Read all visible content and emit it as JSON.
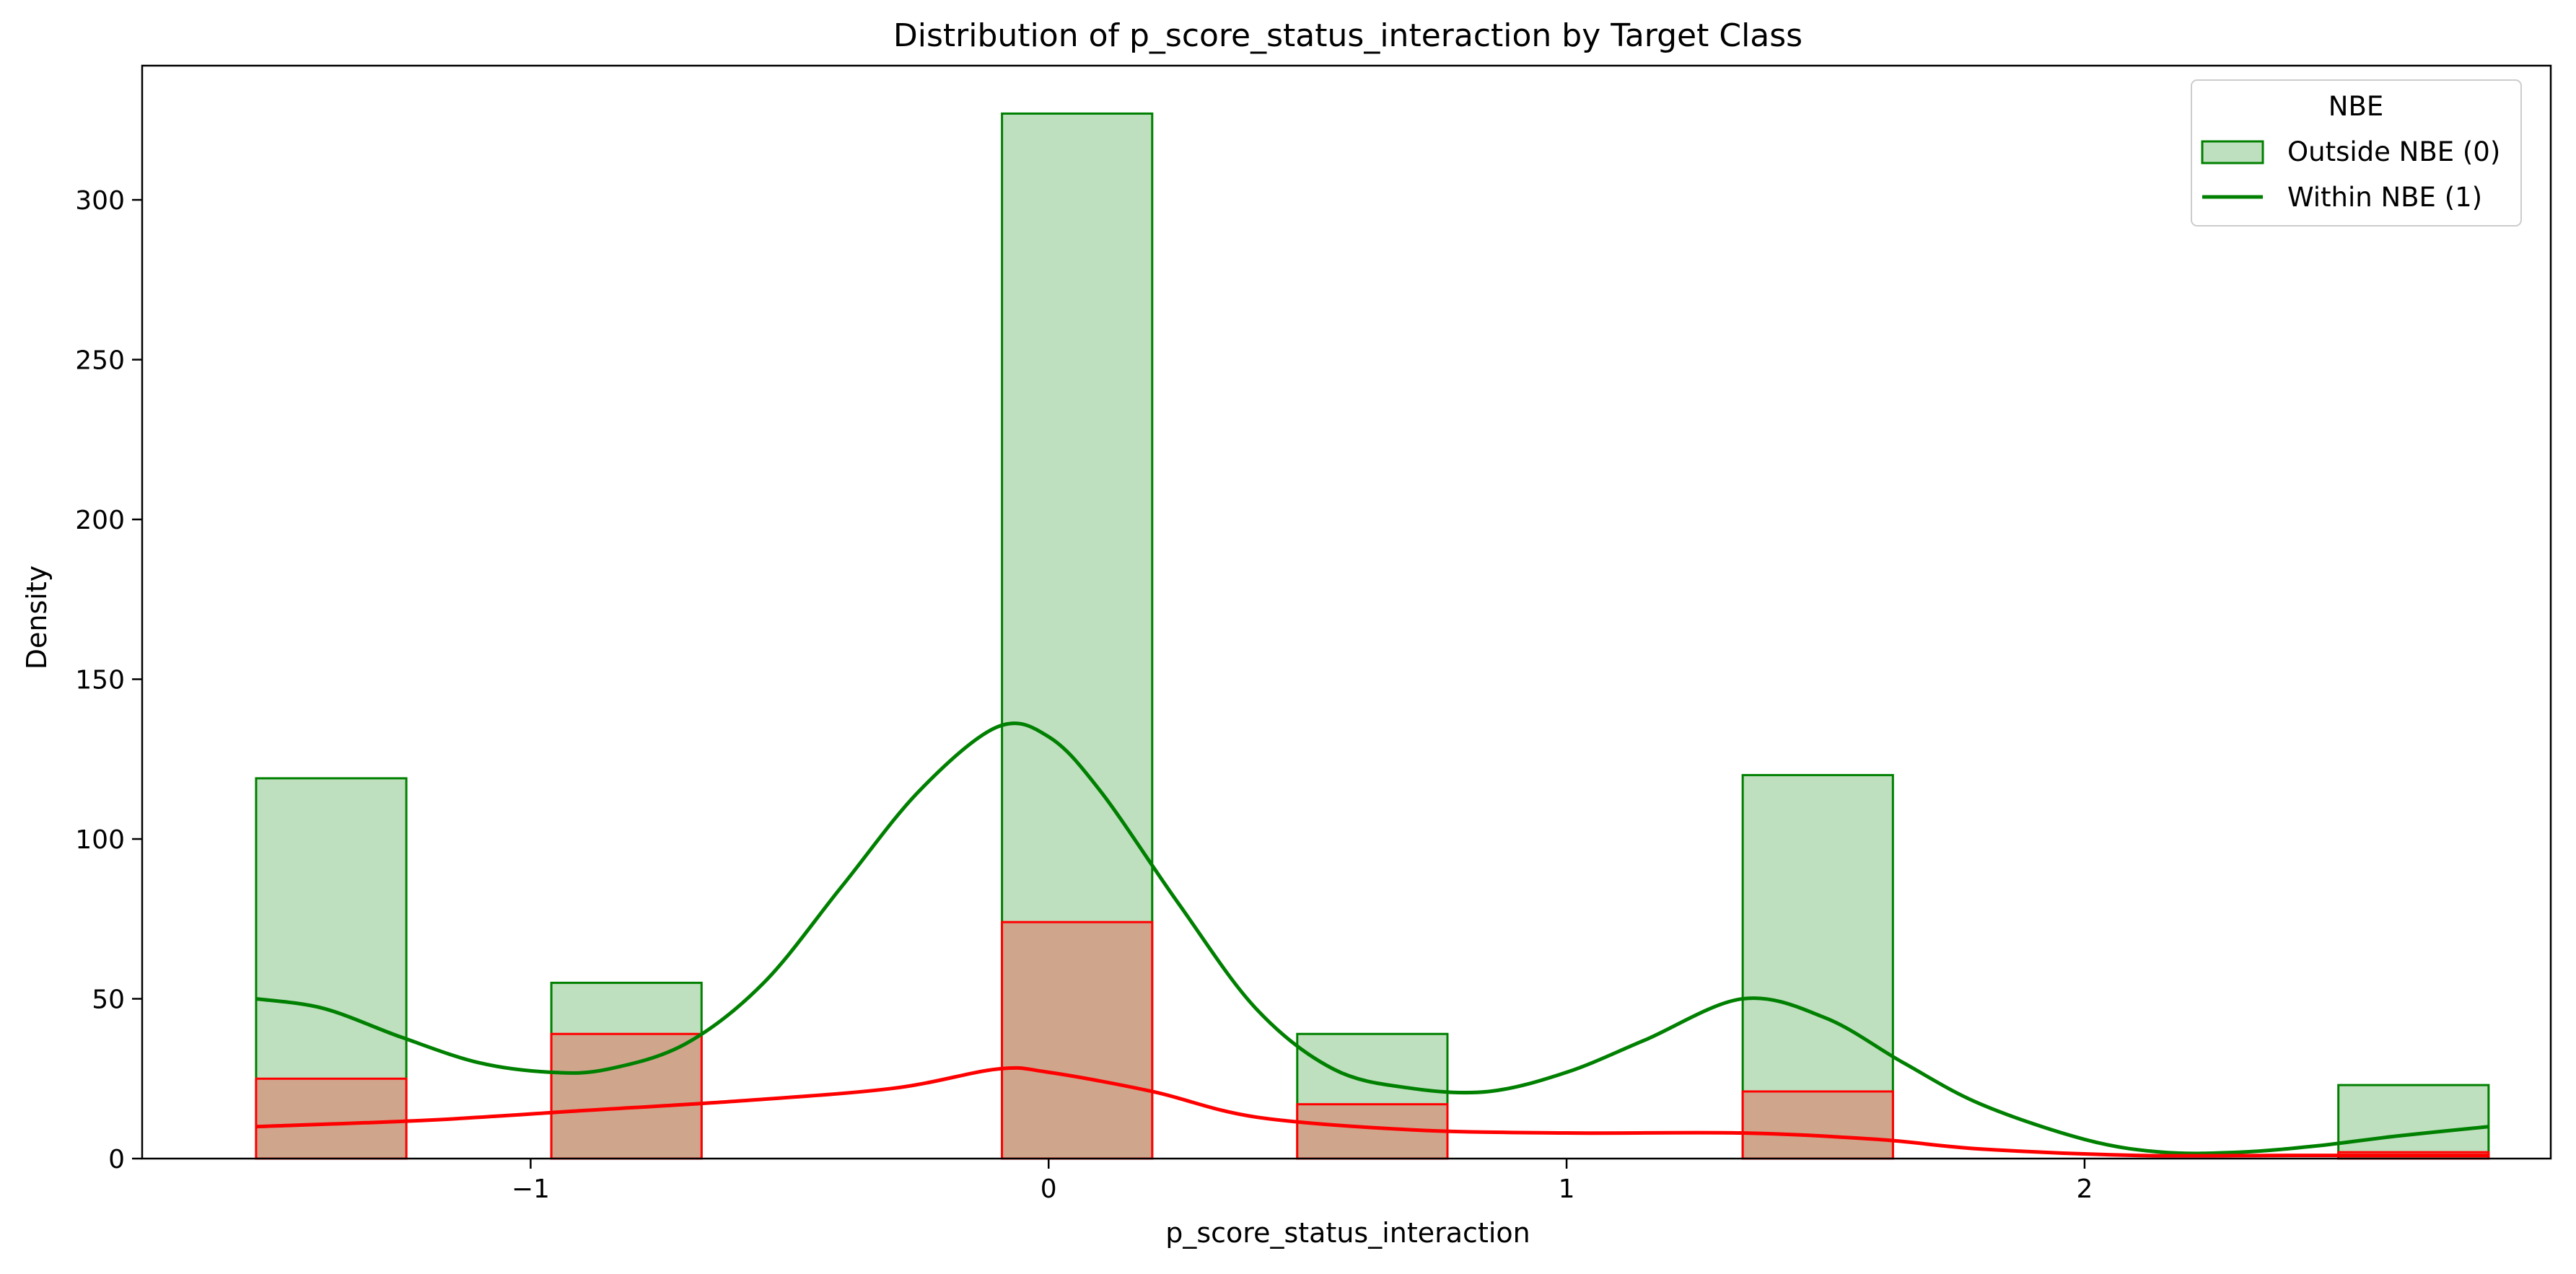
{
  "chart_data": {
    "type": "bar",
    "title": "Distribution of p_score_status_interaction by Target Class",
    "xlabel": "p_score_status_interaction",
    "ylabel": "Density",
    "xlim": [
      -1.75,
      2.9
    ],
    "ylim": [
      0,
      342
    ],
    "x_ticks": [
      -1,
      0,
      1,
      2
    ],
    "x_tick_labels": [
      "−1",
      "0",
      "1",
      "2"
    ],
    "y_ticks": [
      0,
      50,
      100,
      150,
      200,
      250,
      300
    ],
    "y_tick_labels": [
      "0",
      "50",
      "100",
      "150",
      "200",
      "250",
      "300"
    ],
    "grid": false,
    "legend": {
      "title": "NBE",
      "placement": "top-right",
      "entries": [
        "Outside NBE (0)",
        "Within NBE (1)"
      ]
    },
    "colors": {
      "outside_fill": "#bfe0bf",
      "outside_edge": "#008000",
      "within_fill": "#cfa68c",
      "within_edge": "#ff0000",
      "kde_outside": "#008000",
      "kde_within": "#ff0000"
    },
    "bins": [
      {
        "x0": -1.53,
        "x1": -1.24
      },
      {
        "x0": -0.96,
        "x1": -0.67
      },
      {
        "x0": -0.09,
        "x1": 0.2
      },
      {
        "x0": 0.48,
        "x1": 0.77
      },
      {
        "x0": 1.34,
        "x1": 1.63
      },
      {
        "x0": 2.49,
        "x1": 2.78
      }
    ],
    "series": [
      {
        "name": "Outside NBE (0)",
        "values": [
          119,
          55,
          327,
          39,
          120,
          23
        ]
      },
      {
        "name": "Within NBE (1)",
        "values": [
          25,
          39,
          74,
          17,
          21,
          2
        ]
      }
    ],
    "kde": [
      {
        "name": "Outside NBE (0)",
        "points": [
          [
            -1.53,
            50
          ],
          [
            -1.4,
            47
          ],
          [
            -1.25,
            38
          ],
          [
            -1.1,
            30
          ],
          [
            -0.96,
            27
          ],
          [
            -0.85,
            28
          ],
          [
            -0.7,
            36
          ],
          [
            -0.55,
            55
          ],
          [
            -0.4,
            85
          ],
          [
            -0.25,
            115
          ],
          [
            -0.1,
            135
          ],
          [
            0.0,
            132
          ],
          [
            0.1,
            115
          ],
          [
            0.25,
            80
          ],
          [
            0.4,
            47
          ],
          [
            0.55,
            28
          ],
          [
            0.7,
            22
          ],
          [
            0.85,
            21
          ],
          [
            1.0,
            27
          ],
          [
            1.15,
            37
          ],
          [
            1.34,
            50
          ],
          [
            1.5,
            44
          ],
          [
            1.65,
            30
          ],
          [
            1.8,
            17
          ],
          [
            2.0,
            6
          ],
          [
            2.15,
            2
          ],
          [
            2.3,
            2
          ],
          [
            2.45,
            4
          ],
          [
            2.6,
            7
          ],
          [
            2.78,
            10
          ]
        ]
      },
      {
        "name": "Within NBE (1)",
        "points": [
          [
            -1.53,
            10
          ],
          [
            -1.2,
            12
          ],
          [
            -0.9,
            15
          ],
          [
            -0.6,
            18
          ],
          [
            -0.3,
            22
          ],
          [
            -0.1,
            28
          ],
          [
            0.0,
            27
          ],
          [
            0.2,
            21
          ],
          [
            0.4,
            13
          ],
          [
            0.7,
            9
          ],
          [
            1.0,
            8
          ],
          [
            1.34,
            8
          ],
          [
            1.6,
            6
          ],
          [
            1.8,
            3
          ],
          [
            2.1,
            1
          ],
          [
            2.4,
            1
          ],
          [
            2.78,
            1
          ]
        ]
      }
    ]
  }
}
